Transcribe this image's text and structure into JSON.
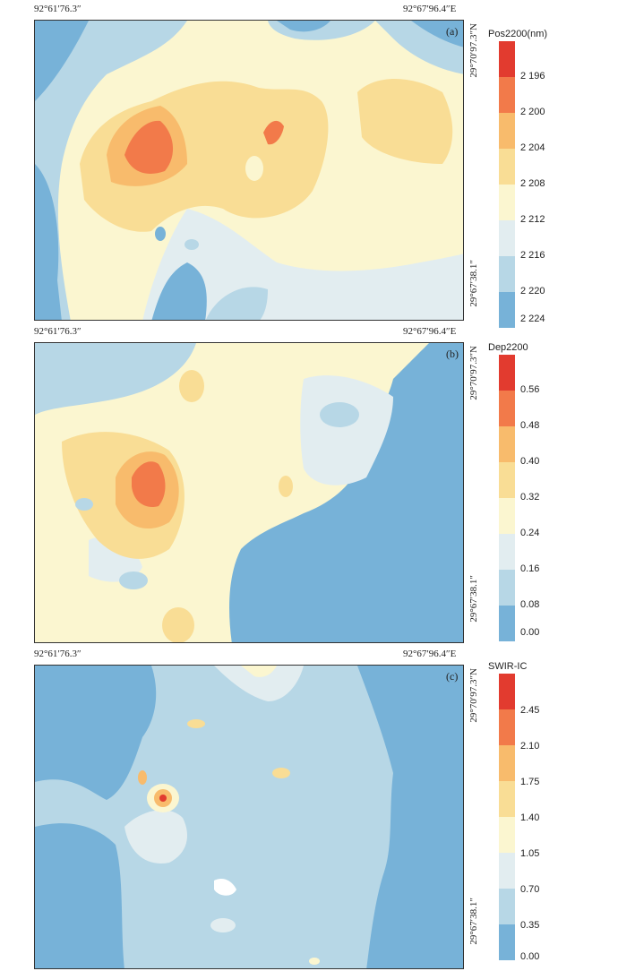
{
  "palette": [
    "#77b2d8",
    "#b7d7e6",
    "#e2edf0",
    "#fbf6d0",
    "#f9dd95",
    "#f8bb6c",
    "#f27a4a",
    "#e23b2f"
  ],
  "panels": [
    {
      "label": "(a)",
      "coord_top_left": "92°61′76.3″",
      "coord_top_right": "92°67′96.4″E",
      "coord_right_top": "29°70′97.3″N",
      "coord_right_bottom": "29°67′38.1″",
      "legend_title": "Pos2200(nm)",
      "legend_labels": [
        "2 196",
        "2 200",
        "2 204",
        "2 208",
        "2 212",
        "2 216",
        "2 220",
        "2 224"
      ]
    },
    {
      "label": "(b)",
      "coord_top_left": "92°61′76.3″",
      "coord_top_right": "92°67′96.4″E",
      "coord_right_top": "29°70′97.3″N",
      "coord_right_bottom": "29°67′38.1″",
      "legend_title": "Dep2200",
      "legend_labels": [
        "0.56",
        "0.48",
        "0.40",
        "0.32",
        "0.24",
        "0.16",
        "0.08",
        "0.00"
      ]
    },
    {
      "label": "(c)",
      "coord_top_left": "92°61′76.3″",
      "coord_top_right": "92°67′96.4″E",
      "coord_right_top": "29°70′97.3″N",
      "coord_right_bottom": "29°67′38.1″",
      "legend_title": "SWIR-IC",
      "legend_labels": [
        "2.45",
        "2.10",
        "1.75",
        "1.40",
        "1.05",
        "0.70",
        "0.35",
        "0.00"
      ]
    }
  ]
}
